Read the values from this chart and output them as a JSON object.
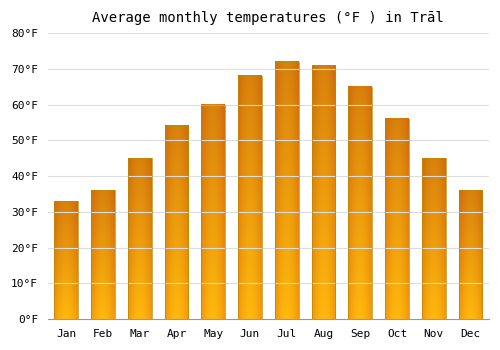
{
  "title": "Average monthly temperatures (°F ) in Trāl",
  "months": [
    "Jan",
    "Feb",
    "Mar",
    "Apr",
    "May",
    "Jun",
    "Jul",
    "Aug",
    "Sep",
    "Oct",
    "Nov",
    "Dec"
  ],
  "values": [
    33,
    36,
    45,
    54,
    60,
    68,
    72,
    71,
    65,
    56,
    45,
    36
  ],
  "ylim": [
    0,
    80
  ],
  "yticks": [
    0,
    10,
    20,
    30,
    40,
    50,
    60,
    70,
    80
  ],
  "ytick_labels": [
    "0°F",
    "10°F",
    "20°F",
    "30°F",
    "40°F",
    "50°F",
    "60°F",
    "70°F",
    "80°F"
  ],
  "background_color": "#ffffff",
  "grid_color": "#dddddd",
  "bar_color_left": "#FFD000",
  "bar_color_center": "#FF9900",
  "bar_color_right": "#FFCC00",
  "bar_edge_color": "#CC7700",
  "title_fontsize": 10,
  "tick_fontsize": 8,
  "font_family": "monospace"
}
